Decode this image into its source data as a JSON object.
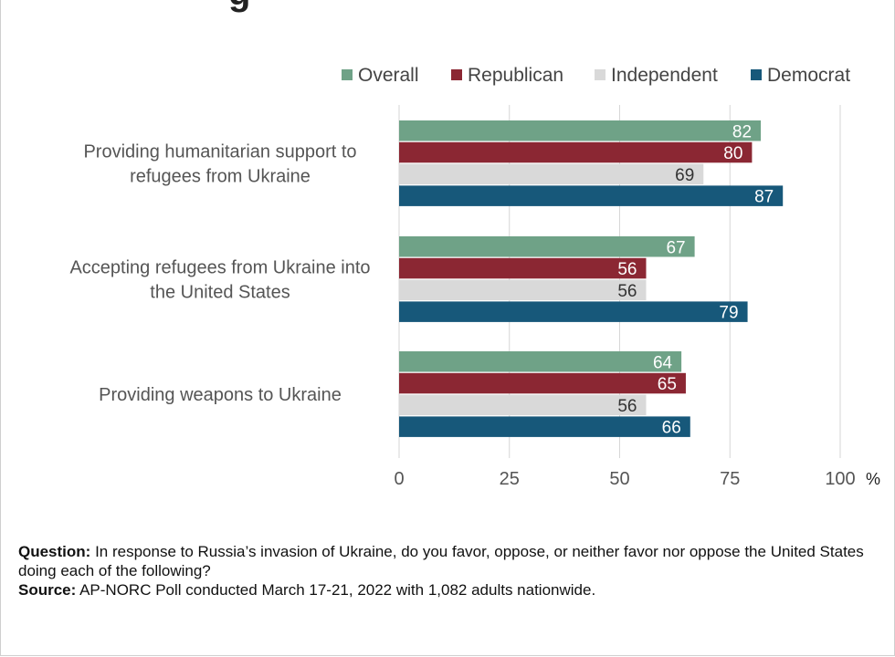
{
  "title_fragment": "g",
  "chart_data": {
    "type": "bar",
    "orientation": "horizontal",
    "categories": [
      "Providing humanitarian support to refugees from Ukraine",
      "Accepting refugees from Ukraine into the United States",
      "Providing weapons to Ukraine"
    ],
    "category_lines": [
      [
        "Providing humanitarian support to",
        "refugees from Ukraine"
      ],
      [
        "Accepting refugees from Ukraine into",
        "the United States"
      ],
      [
        "Providing weapons to Ukraine"
      ]
    ],
    "series": [
      {
        "name": "Overall",
        "color": "#6fa287",
        "values": [
          82,
          67,
          64
        ]
      },
      {
        "name": "Republican",
        "color": "#8b2733",
        "values": [
          80,
          56,
          65
        ]
      },
      {
        "name": "Independent",
        "color": "#d9d9d9",
        "values": [
          69,
          56,
          56
        ]
      },
      {
        "name": "Democrat",
        "color": "#17587a",
        "values": [
          87,
          79,
          66
        ]
      }
    ],
    "xlim": [
      0,
      100
    ],
    "xticks": [
      "0",
      "25",
      "50",
      "75",
      "100"
    ],
    "unit": "%",
    "grid": true,
    "legend_position": "top-right"
  },
  "notes": {
    "question_label": "Question:",
    "question_text": " In response to Russia’s invasion of Ukraine, do you favor, oppose, or neither favor nor oppose the United States doing each of the following?",
    "source_label": "Source:",
    "source_text": " AP-NORC Poll conducted March 17-21, 2022 with 1,082 adults nationwide."
  }
}
